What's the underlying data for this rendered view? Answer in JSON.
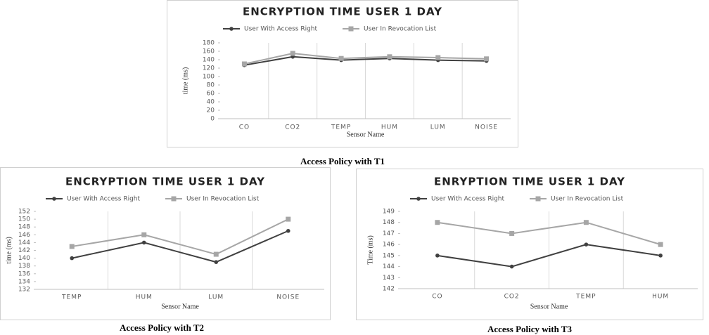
{
  "chart_data": [
    {
      "type": "line",
      "title": "ENCRYPTION TIME USER 1 DAY",
      "x_label": "Sensor Name",
      "y_label": "time (ms)",
      "caption": "Access Policy with T1",
      "categories": [
        "CO",
        "CO2",
        "TEMP",
        "HUM",
        "LUM",
        "NOISE"
      ],
      "series": [
        {
          "name": "User With Access Right",
          "color": "#404040",
          "values": [
            127,
            147,
            139,
            143,
            139,
            137
          ]
        },
        {
          "name": "User In Revocation List",
          "color": "#a6a6a6",
          "values": [
            130,
            155,
            143,
            147,
            145,
            142
          ]
        }
      ],
      "ylim": [
        0,
        180
      ],
      "yticks": [
        0,
        20,
        40,
        60,
        80,
        100,
        120,
        140,
        160,
        180
      ],
      "legend": "top"
    },
    {
      "type": "line",
      "title": "ENCRYPTION TIME USER 1 DAY",
      "x_label": "Sensor Name",
      "y_label": "time (ms)",
      "caption": "Access Policy with T2",
      "categories": [
        "TEMP",
        "HUM",
        "LUM",
        "NOISE"
      ],
      "series": [
        {
          "name": "User With Access Right",
          "color": "#404040",
          "values": [
            140,
            144,
            139,
            147
          ]
        },
        {
          "name": "User In Revocation List",
          "color": "#a6a6a6",
          "values": [
            143,
            146,
            141,
            150
          ]
        }
      ],
      "ylim": [
        132,
        152
      ],
      "yticks": [
        132,
        134,
        136,
        138,
        140,
        142,
        144,
        146,
        148,
        150,
        152
      ],
      "legend": "top"
    },
    {
      "type": "line",
      "title": "ENRYPTION TIME USER 1 DAY",
      "x_label": "Sensor Name",
      "y_label": "Time (ms)",
      "caption": "Access Policy with T3",
      "categories": [
        "CO",
        "CO2",
        "TEMP",
        "HUM"
      ],
      "series": [
        {
          "name": "User With Access Right",
          "color": "#404040",
          "values": [
            145,
            144,
            146,
            145
          ]
        },
        {
          "name": "User In Revocation List",
          "color": "#a6a6a6",
          "values": [
            148,
            147,
            148,
            146
          ]
        }
      ],
      "ylim": [
        142,
        149
      ],
      "yticks": [
        142,
        143,
        144,
        145,
        146,
        147,
        148,
        149
      ],
      "legend": "top"
    }
  ]
}
